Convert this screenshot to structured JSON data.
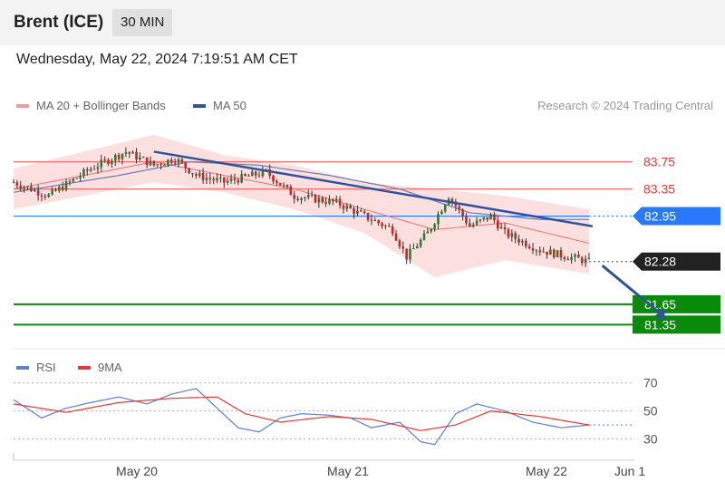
{
  "header": {
    "title": "Brent (ICE)",
    "interval": "30 MIN"
  },
  "datetime": "Wednesday, May 22, 2024 7:19:51 AM CET",
  "legend": {
    "ma20": {
      "label": "MA 20 + Bollinger Bands",
      "color": "#f49a9a"
    },
    "ma50": {
      "label": "MA 50",
      "color": "#2f5597"
    }
  },
  "research": "Research © 2024 Trading Central",
  "rsi_legend": {
    "rsi": {
      "label": "RSI",
      "color": "#5b7fd6"
    },
    "ma9": {
      "label": "9MA",
      "color": "#e53935"
    }
  },
  "chart_data": [
    {
      "type": "candlestick",
      "interval": "30 MIN",
      "y_range": [
        80.9,
        84.4
      ],
      "x_ticks": [
        "May 20",
        "May 21",
        "May 22",
        "Jun 1"
      ],
      "levels": [
        {
          "label": "83.75",
          "value": 83.75,
          "kind": "resistance",
          "color": "#f07070",
          "text_color": "#e53935"
        },
        {
          "label": "83.35",
          "value": 83.35,
          "kind": "resistance",
          "color": "#f07070",
          "text_color": "#e53935"
        },
        {
          "label": "82.95",
          "value": 82.95,
          "kind": "pivot",
          "color": "#2979ff"
        },
        {
          "label": "82.28",
          "value": 82.28,
          "kind": "last",
          "color": "#222222"
        },
        {
          "label": "81.65",
          "value": 81.65,
          "kind": "support",
          "color": "#0a8a0a"
        },
        {
          "label": "81.35",
          "value": 81.35,
          "kind": "support",
          "color": "#0a8a0a"
        }
      ],
      "trendline": [
        [
          40,
          83.9
        ],
        [
          165,
          82.8
        ]
      ],
      "target_arrow": [
        [
          167,
          82.26
        ],
        [
          176,
          81.4
        ]
      ],
      "bars": {
        "start_price": 83.45,
        "end_price": 82.28,
        "min": 81.95,
        "max": 84.0,
        "path": [
          [
            0,
            83.45
          ],
          [
            10,
            83.25
          ],
          [
            22,
            83.65
          ],
          [
            32,
            83.9
          ],
          [
            40,
            83.7
          ],
          [
            46,
            83.8
          ],
          [
            52,
            83.55
          ],
          [
            60,
            83.45
          ],
          [
            72,
            83.6
          ],
          [
            80,
            83.25
          ],
          [
            92,
            83.15
          ],
          [
            100,
            82.95
          ],
          [
            108,
            82.75
          ],
          [
            112,
            82.35
          ],
          [
            118,
            82.7
          ],
          [
            124,
            83.25
          ],
          [
            130,
            82.8
          ],
          [
            136,
            82.95
          ],
          [
            140,
            82.7
          ],
          [
            150,
            82.45
          ],
          [
            158,
            82.35
          ],
          [
            164,
            82.28
          ]
        ]
      },
      "ma20": [
        [
          0,
          83.35
        ],
        [
          20,
          83.55
        ],
        [
          40,
          83.75
        ],
        [
          60,
          83.55
        ],
        [
          80,
          83.35
        ],
        [
          100,
          83.05
        ],
        [
          120,
          82.75
        ],
        [
          140,
          82.85
        ],
        [
          164,
          82.55
        ]
      ],
      "bollinger_upper": [
        [
          0,
          83.65
        ],
        [
          20,
          83.9
        ],
        [
          40,
          84.15
        ],
        [
          60,
          83.85
        ],
        [
          80,
          83.7
        ],
        [
          100,
          83.45
        ],
        [
          120,
          83.35
        ],
        [
          140,
          83.25
        ],
        [
          164,
          83.05
        ]
      ],
      "bollinger_lower": [
        [
          0,
          83.05
        ],
        [
          20,
          83.25
        ],
        [
          40,
          83.45
        ],
        [
          60,
          83.3
        ],
        [
          80,
          83.05
        ],
        [
          100,
          82.7
        ],
        [
          120,
          82.05
        ],
        [
          140,
          82.3
        ],
        [
          164,
          82.1
        ]
      ],
      "ma50": [
        [
          0,
          83.3
        ],
        [
          30,
          83.55
        ],
        [
          50,
          83.75
        ],
        [
          70,
          83.7
        ],
        [
          90,
          83.55
        ],
        [
          110,
          83.35
        ],
        [
          130,
          83.0
        ],
        [
          150,
          82.9
        ],
        [
          164,
          82.9
        ]
      ]
    },
    {
      "type": "line",
      "title": "RSI",
      "y_range": [
        20,
        75
      ],
      "y_ticks": [
        "70",
        "50",
        "30"
      ],
      "series": [
        {
          "name": "RSI",
          "color": "#5b7fd6",
          "points": [
            [
              0,
              58
            ],
            [
              8,
              45
            ],
            [
              15,
              52
            ],
            [
              22,
              56
            ],
            [
              30,
              60
            ],
            [
              38,
              55
            ],
            [
              45,
              62
            ],
            [
              52,
              66
            ],
            [
              58,
              52
            ],
            [
              64,
              38
            ],
            [
              70,
              35
            ],
            [
              76,
              45
            ],
            [
              82,
              48
            ],
            [
              90,
              47
            ],
            [
              96,
              45
            ],
            [
              102,
              38
            ],
            [
              110,
              42
            ],
            [
              116,
              28
            ],
            [
              120,
              26
            ],
            [
              126,
              48
            ],
            [
              132,
              55
            ],
            [
              140,
              50
            ],
            [
              148,
              42
            ],
            [
              156,
              38
            ],
            [
              164,
              40
            ]
          ]
        },
        {
          "name": "9MA",
          "color": "#e53935",
          "points": [
            [
              0,
              55
            ],
            [
              15,
              49
            ],
            [
              30,
              56
            ],
            [
              45,
              59
            ],
            [
              58,
              60
            ],
            [
              66,
              48
            ],
            [
              76,
              42
            ],
            [
              90,
              46
            ],
            [
              102,
              44
            ],
            [
              116,
              36
            ],
            [
              126,
              40
            ],
            [
              136,
              50
            ],
            [
              150,
              46
            ],
            [
              164,
              40
            ]
          ]
        }
      ]
    }
  ]
}
